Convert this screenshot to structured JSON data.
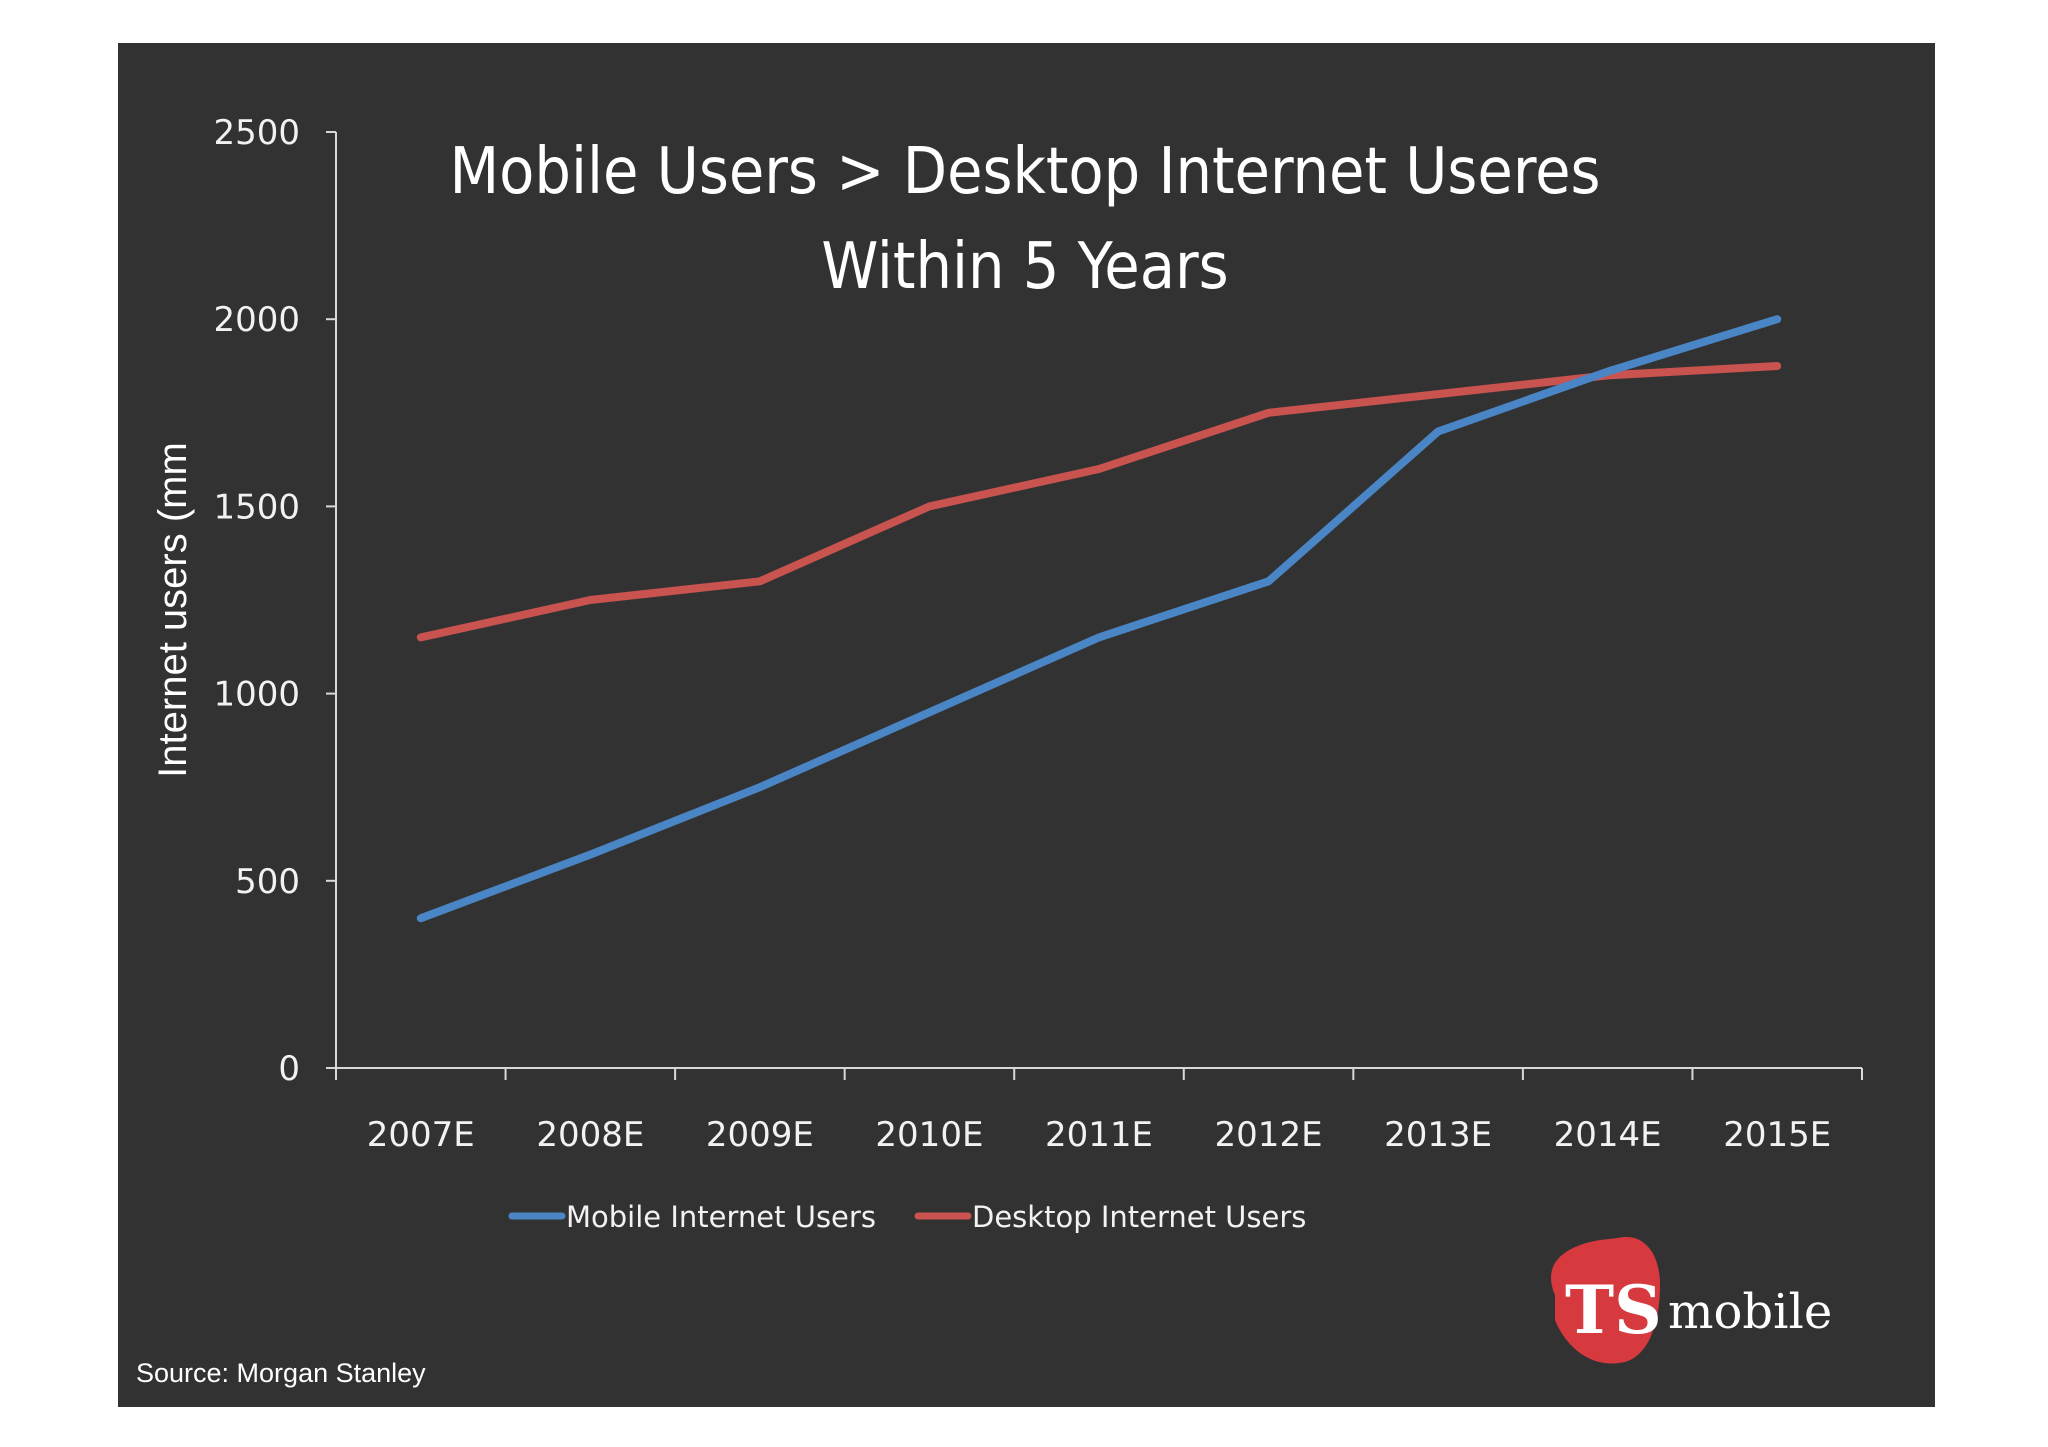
{
  "chart_data": {
    "type": "line",
    "title_lines": [
      "Mobile Users > Desktop Internet Useres",
      "Within 5 Years"
    ],
    "ylabel": "Internet users (mm",
    "categories": [
      "2007E",
      "2008E",
      "2009E",
      "2010E",
      "2011E",
      "2012E",
      "2013E",
      "2014E",
      "2015E"
    ],
    "series": [
      {
        "name": "Mobile Internet Users",
        "color": "#4a86c5",
        "values": [
          400,
          570,
          750,
          950,
          1150,
          1300,
          1700,
          1860,
          2000
        ]
      },
      {
        "name": "Desktop Internet Users",
        "color": "#c9534f",
        "values": [
          1150,
          1250,
          1300,
          1500,
          1600,
          1750,
          1800,
          1850,
          1875
        ]
      }
    ],
    "ylim": [
      0,
      2500
    ],
    "yticks": [
      0,
      500,
      1000,
      1500,
      2000,
      2500
    ],
    "ytick_labels": [
      "0",
      "500",
      "1000",
      "1500",
      "2000",
      "2500"
    ],
    "grid": false,
    "legend_placement": "bottom"
  },
  "source": "Source: Morgan Stanley",
  "logo": {
    "mark": "TS",
    "text": "mobile",
    "color": "#d63a3f"
  },
  "colors": {
    "background": "#333233",
    "axis": "#d9d9d9"
  }
}
